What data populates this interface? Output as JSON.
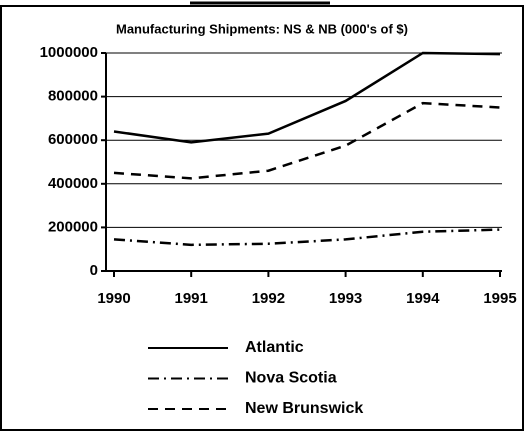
{
  "chart_data": {
    "type": "line",
    "title": "Manufacturing Shipments: NS & NB (000's of $)",
    "x": [
      1990,
      1991,
      1992,
      1993,
      1994,
      1995
    ],
    "xlim": [
      1990,
      1995
    ],
    "xticks": [
      1990,
      1991,
      1992,
      1993,
      1994,
      1995
    ],
    "ylim": [
      0,
      1000000
    ],
    "yticks": [
      0,
      200000,
      400000,
      600000,
      800000,
      1000000
    ],
    "grid": true,
    "series": [
      {
        "name": "Atlantic",
        "color": "#000000",
        "style": "solid",
        "values": [
          640000,
          590000,
          630000,
          780000,
          1000000,
          995000
        ]
      },
      {
        "name": "Nova Scotia",
        "color": "#000000",
        "style": "dashdot",
        "values": [
          145000,
          120000,
          125000,
          145000,
          180000,
          190000
        ]
      },
      {
        "name": "New Brunswick",
        "color": "#000000",
        "style": "dashed",
        "values": [
          450000,
          425000,
          460000,
          575000,
          770000,
          750000
        ]
      }
    ]
  }
}
